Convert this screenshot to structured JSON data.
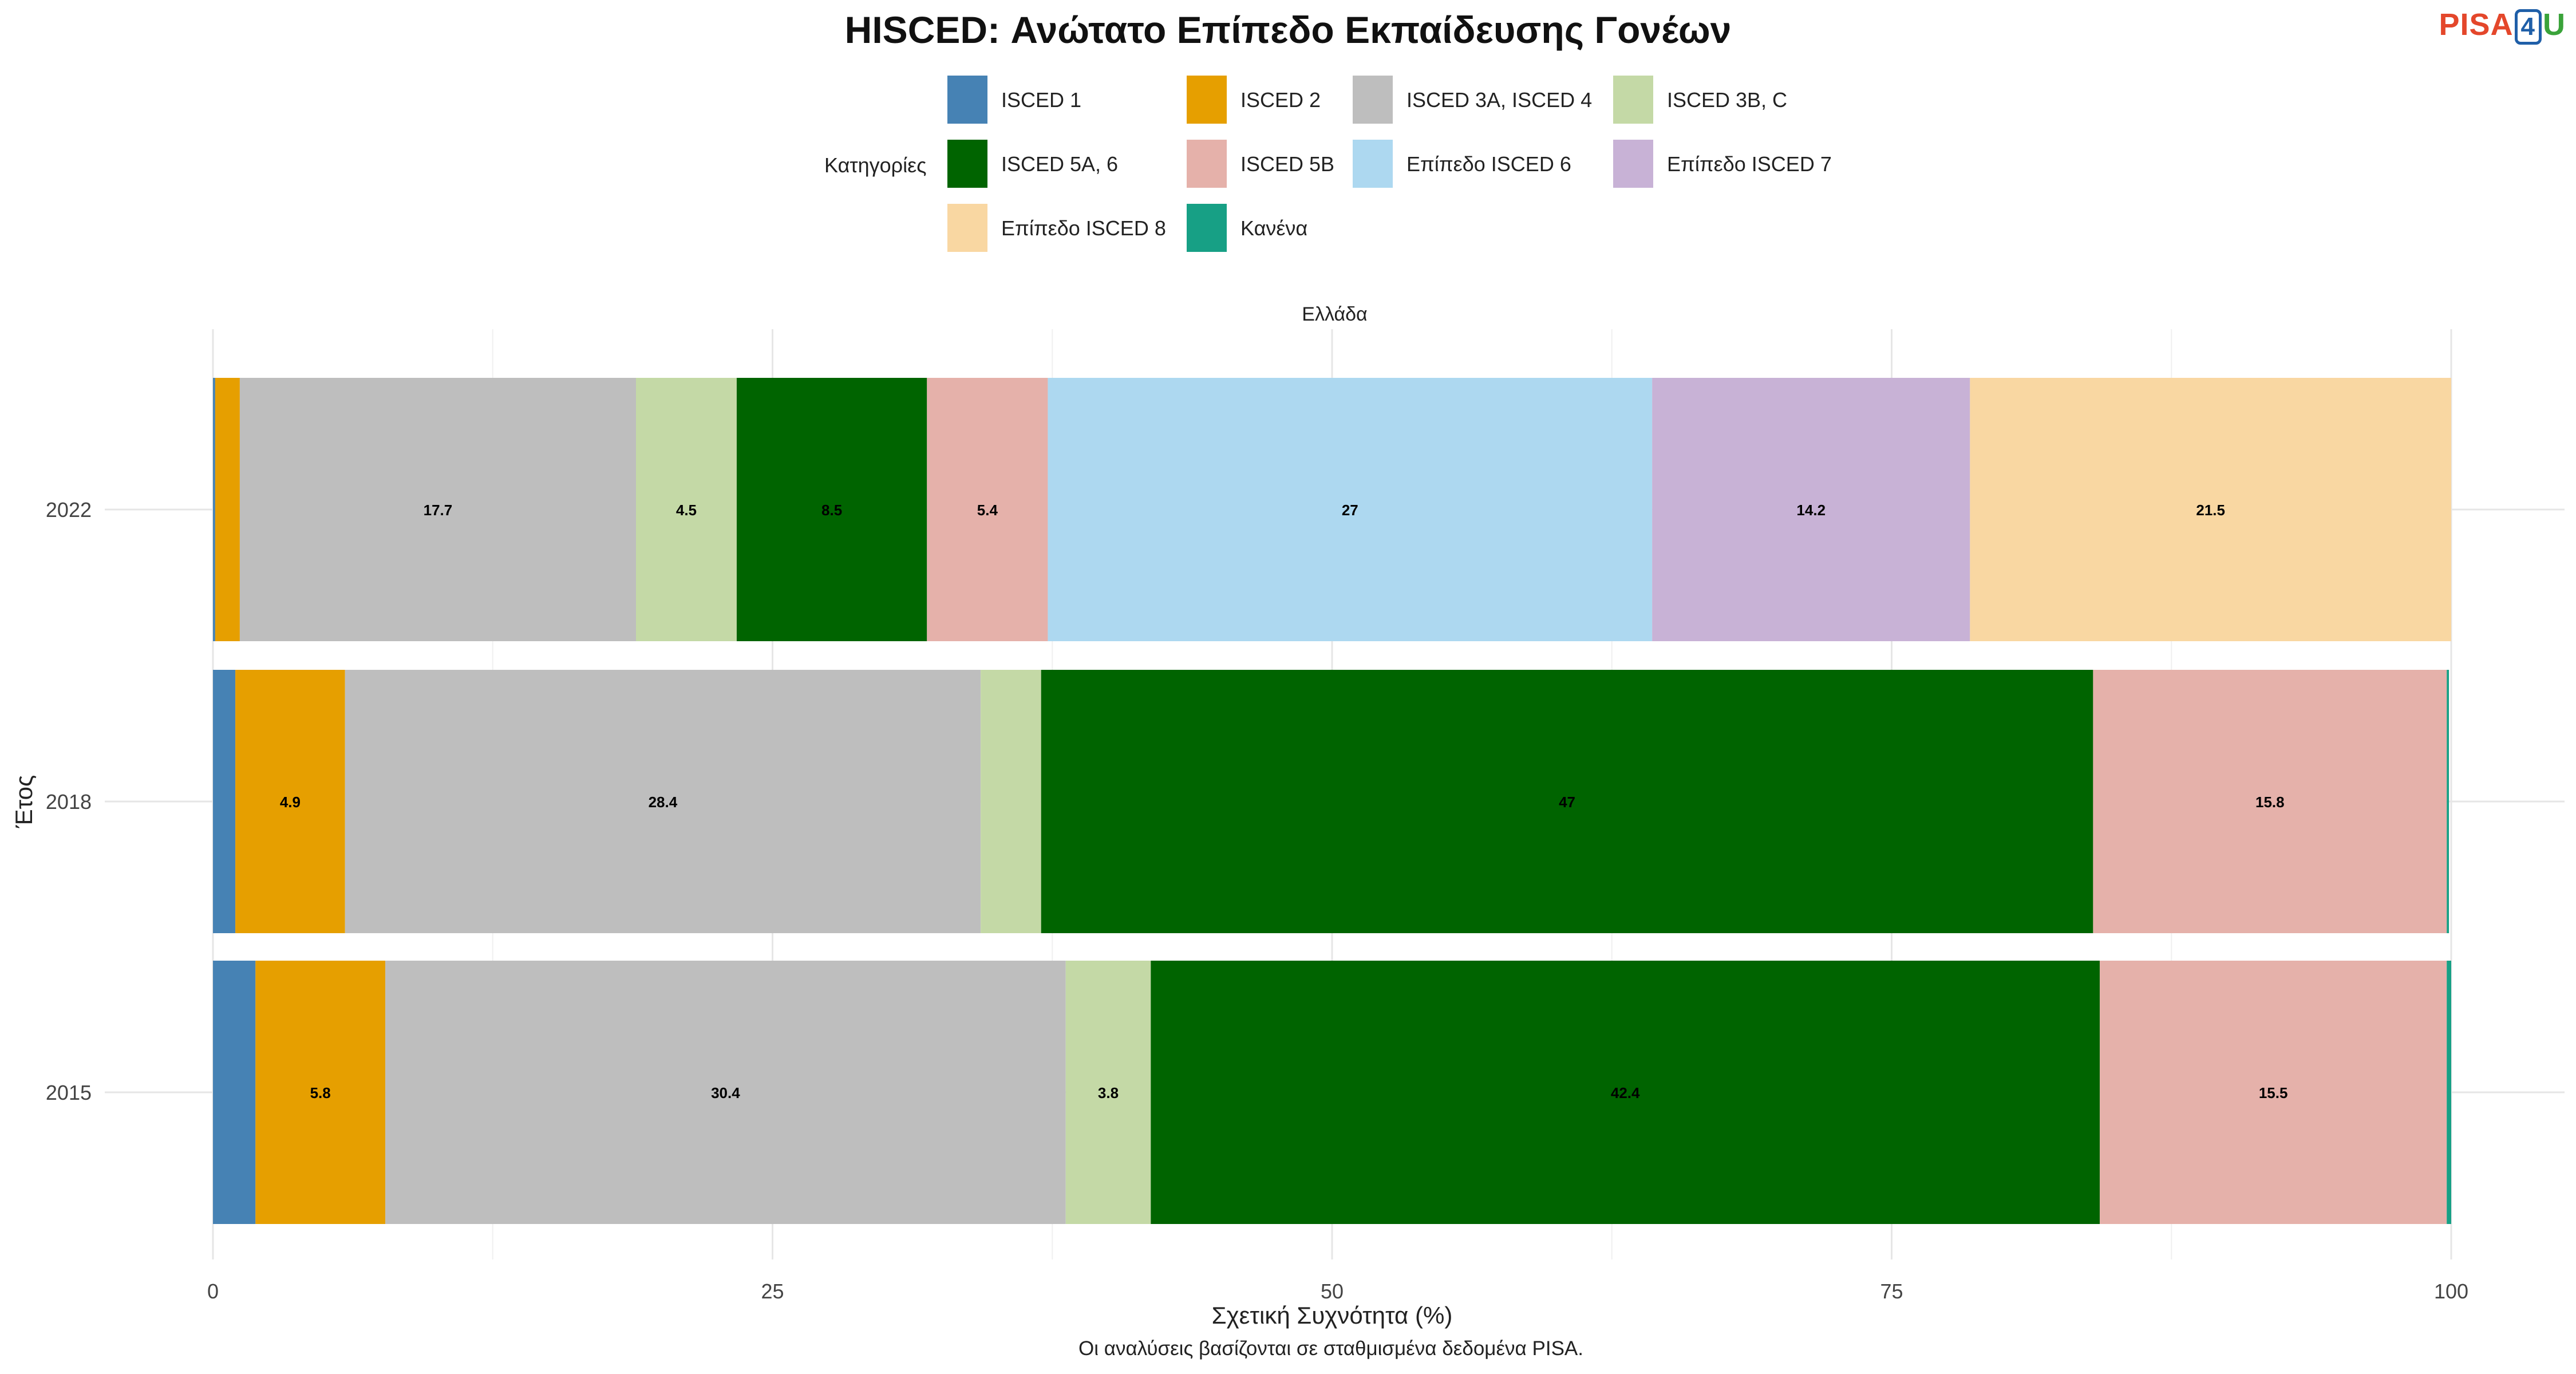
{
  "title": "HISCED: Ανώτατο Επίπεδο Εκπαίδευσης Γονέων",
  "logo": {
    "part1": "PISA",
    "part2": "4",
    "part3": "U"
  },
  "legend_title": "Κατηγορίες",
  "caption": "Οι αναλύσεις βασίζονται σε σταθμισμένα δεδομένα PISA.",
  "colors": {
    "ISCED 1": "#4682b4",
    "ISCED 2": "#e69f00",
    "ISCED 3A, ISCED 4": "#bebebe",
    "ISCED 3B, C": "#c4d9a6",
    "ISCED 5A, 6": "#006400",
    "ISCED 5B": "#e5b1aa",
    "Επίπεδο ISCED 6": "#add8f0",
    "Επίπεδο ISCED 7": "#c8b2d6",
    "Επίπεδο ISCED 8": "#f9d7a2",
    "Κανένα": "#17a085"
  },
  "legend_items": [
    "ISCED 1",
    "ISCED 2",
    "ISCED 3A, ISCED 4",
    "ISCED 3B, C",
    "ISCED 5A, 6",
    "ISCED 5B",
    "Επίπεδο ISCED 6",
    "Επίπεδο ISCED 7",
    "Επίπεδο ISCED 8",
    "Κανένα"
  ],
  "chart_data": {
    "type": "bar",
    "orientation": "horizontal",
    "stacked": true,
    "facet_label": "Ελλάδα",
    "xlabel": "Σχετική Συχνότητα (%)",
    "ylabel": "Έτος",
    "xlim": [
      0,
      100
    ],
    "xticks": [
      0,
      25,
      50,
      75,
      100
    ],
    "grid": true,
    "legend_position": "top",
    "categories": [
      "2022",
      "2018",
      "2015"
    ],
    "series": [
      {
        "name": "ISCED 1",
        "values": [
          0.1,
          1.0,
          1.9
        ]
      },
      {
        "name": "ISCED 2",
        "values": [
          1.1,
          4.9,
          5.8
        ]
      },
      {
        "name": "ISCED 3A, ISCED 4",
        "values": [
          17.7,
          28.4,
          30.4
        ]
      },
      {
        "name": "ISCED 3B, C",
        "values": [
          4.5,
          2.7,
          3.8
        ]
      },
      {
        "name": "ISCED 5A, 6",
        "values": [
          8.5,
          47,
          42.4
        ]
      },
      {
        "name": "ISCED 5B",
        "values": [
          5.4,
          15.8,
          15.5
        ]
      },
      {
        "name": "Επίπεδο ISCED 6",
        "values": [
          27,
          0,
          0
        ]
      },
      {
        "name": "Επίπεδο ISCED 7",
        "values": [
          14.2,
          0,
          0
        ]
      },
      {
        "name": "Επίπεδο ISCED 8",
        "values": [
          21.5,
          0,
          0
        ]
      },
      {
        "name": "Κανένα",
        "values": [
          0,
          0.1,
          0.2
        ]
      }
    ],
    "data_labels": [
      [
        "",
        "",
        "17.7",
        "4.5",
        "8.5",
        "5.4",
        "27",
        "14.2",
        "21.5",
        ""
      ],
      [
        "",
        "4.9",
        "28.4",
        "",
        "47",
        "15.8",
        "",
        "",
        "",
        ""
      ],
      [
        "",
        "5.8",
        "30.4",
        "3.8",
        "42.4",
        "15.5",
        "",
        "",
        "",
        ""
      ]
    ]
  }
}
